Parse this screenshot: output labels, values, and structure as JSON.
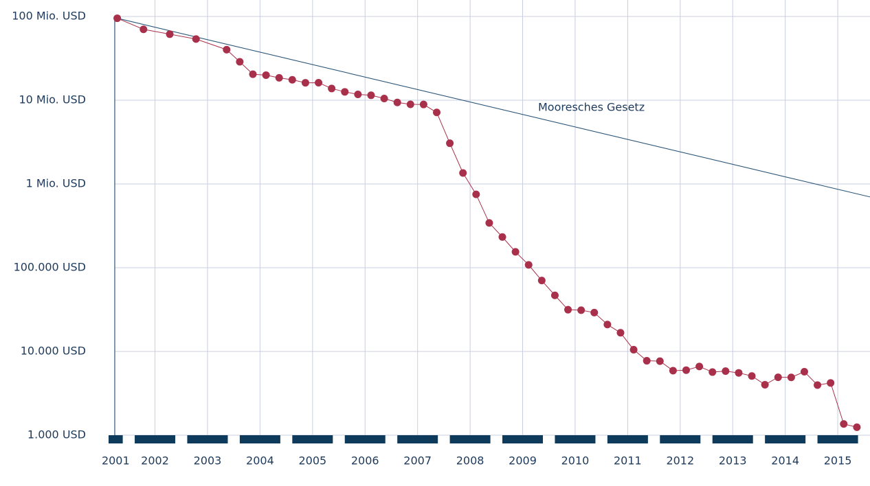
{
  "chart_data": {
    "type": "line",
    "y_scale": "log",
    "grid": true,
    "xlim": [
      2001.62,
      2016
    ],
    "ylim": [
      1000,
      100000000
    ],
    "xticks": [
      2001,
      2002,
      2003,
      2004,
      2005,
      2006,
      2007,
      2008,
      2009,
      2010,
      2011,
      2012,
      2013,
      2014,
      2015
    ],
    "yticks": [
      {
        "value": 1000,
        "label": "1.000 USD"
      },
      {
        "value": 10000,
        "label": "10.000 USD"
      },
      {
        "value": 100000,
        "label": "100.000 USD"
      },
      {
        "value": 1000000,
        "label": "1 Mio. USD"
      },
      {
        "value": 10000000,
        "label": "10 Mio. USD"
      },
      {
        "value": 100000000,
        "label": "100 Mio. USD"
      }
    ],
    "series": [
      {
        "color": "#a8304a",
        "markers": true,
        "x": [
          2001.667,
          2002.167,
          2002.667,
          2003.167,
          2003.75,
          2004.0,
          2004.25,
          2004.5,
          2004.75,
          2005.0,
          2005.25,
          2005.5,
          2005.75,
          2006.0,
          2006.25,
          2006.5,
          2006.75,
          2007.0,
          2007.25,
          2007.5,
          2007.75,
          2008.0,
          2008.25,
          2008.5,
          2008.75,
          2009.0,
          2009.25,
          2009.5,
          2009.75,
          2010.0,
          2010.25,
          2010.5,
          2010.75,
          2011.0,
          2011.25,
          2011.5,
          2011.75,
          2012.0,
          2012.25,
          2012.5,
          2012.75,
          2013.0,
          2013.25,
          2013.5,
          2013.75,
          2014.0,
          2014.25,
          2014.5,
          2014.75,
          2015.0,
          2015.25,
          2015.5,
          2015.75
        ],
        "values": [
          95263072,
          70175437,
          61448422,
          53751684,
          40157554,
          28780376,
          20442576,
          19934346,
          18519312,
          17534970,
          16159699,
          16180224,
          13801124,
          12585659,
          11732535,
          11455315,
          10474556,
          9408739,
          8927342,
          8899187,
          7147571,
          3063820,
          1352982,
          752080,
          342502,
          232735,
          154714,
          108065,
          70333,
          46774,
          31512,
          31125,
          29092,
          20963,
          16712,
          10497,
          7743,
          7666,
          5901,
          5985,
          6618,
          5671,
          5826,
          5550,
          5096,
          4008,
          4920,
          4905,
          5731,
          3970,
          4211,
          1363,
          1245
        ]
      },
      {
        "name": "Mooresches Gesetz",
        "color": "#2b5577",
        "markers": false,
        "x": [
          2001.667,
          2016
        ],
        "values": [
          95263072,
          700000
        ]
      }
    ]
  }
}
